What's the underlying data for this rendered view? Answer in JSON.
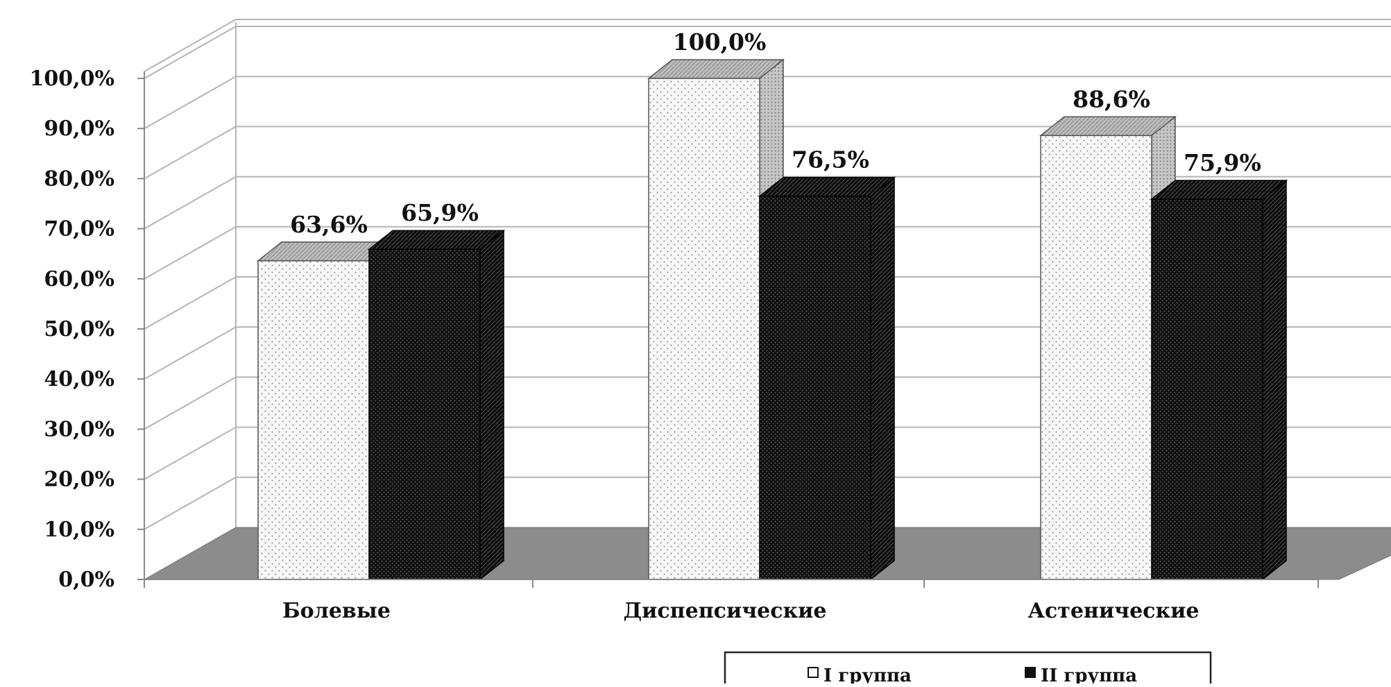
{
  "chart_data": {
    "type": "bar",
    "categories": [
      "Болевые",
      "Диспепсические",
      "Астенические"
    ],
    "series": [
      {
        "name": "I группа",
        "values": [
          63.6,
          100.0,
          88.6
        ],
        "labels": [
          "63,6%",
          "100,0%",
          "88,6%"
        ]
      },
      {
        "name": "II группа",
        "values": [
          65.9,
          76.5,
          75.9
        ],
        "labels": [
          "65,9%",
          "76,5%",
          "75,9%"
        ]
      }
    ],
    "y_ticks": [
      "0,0%",
      "10,0%",
      "20,0%",
      "30,0%",
      "40,0%",
      "50,0%",
      "60,0%",
      "70,0%",
      "80,0%",
      "90,0%",
      "100,0%"
    ],
    "ylim": [
      0,
      100
    ],
    "three_d": true,
    "grid": true,
    "legend_position": "bottom",
    "colors": {
      "series1": "#f4f4f4",
      "series2": "#1a1a1a",
      "floor": "#8c8c8c",
      "grid": "#b4b4b4"
    }
  }
}
